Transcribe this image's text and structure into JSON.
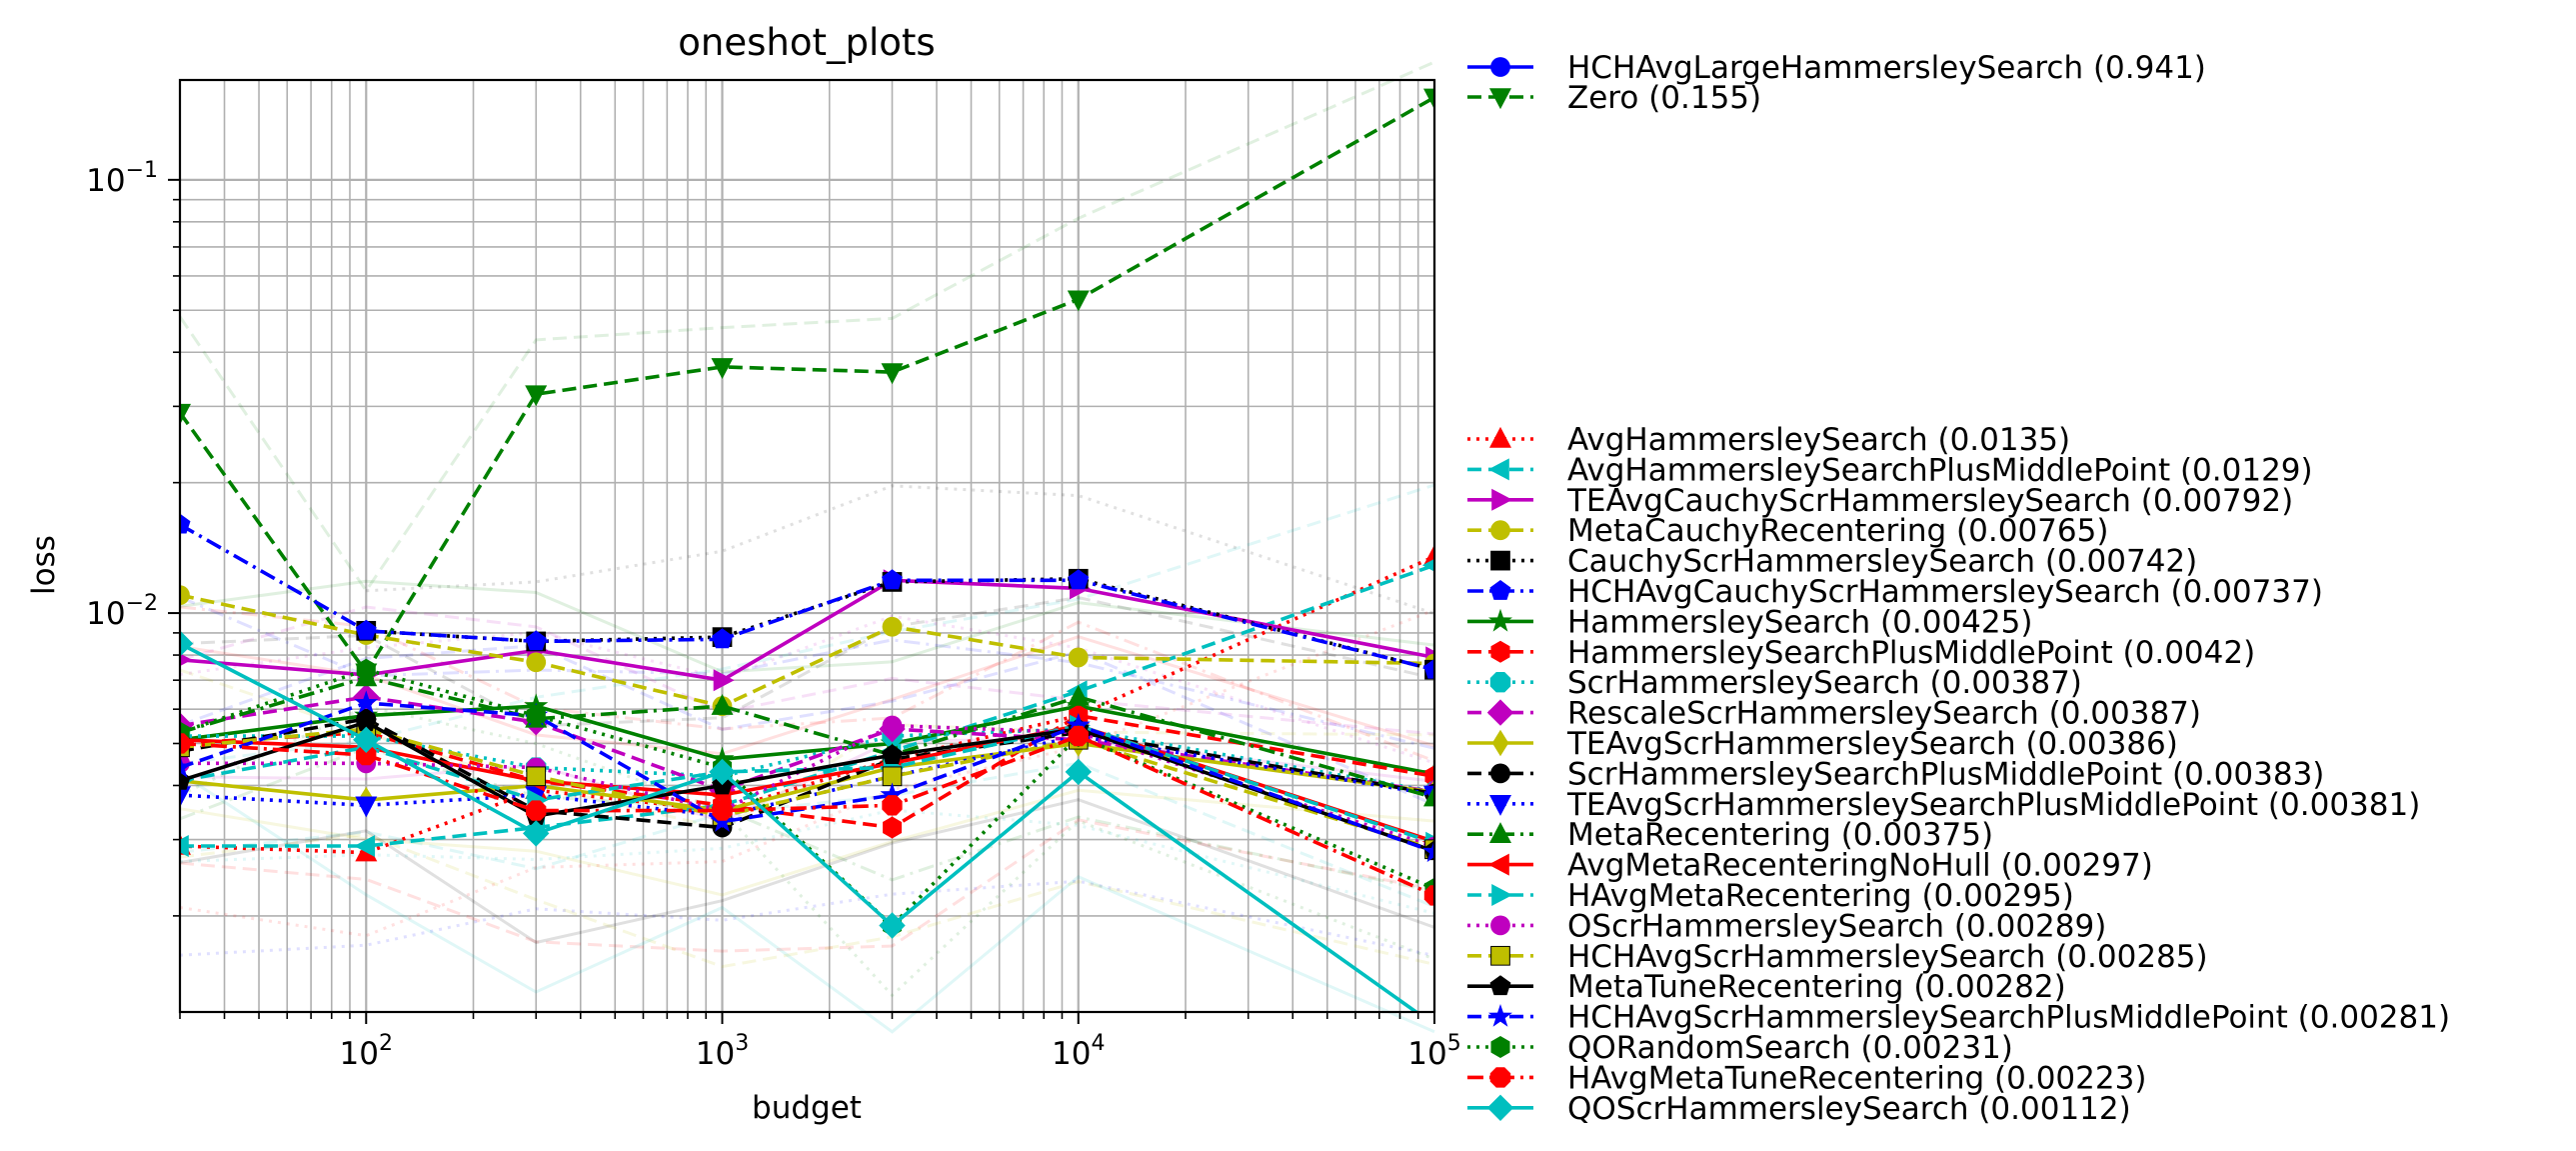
{
  "chart_data": {
    "type": "line",
    "title": "oneshot_plots",
    "xlabel": "budget",
    "ylabel": "loss",
    "xscale": "log",
    "yscale": "log",
    "xlim": [
      30,
      100000
    ],
    "ylim": [
      0.0012,
      0.17
    ],
    "grid": true,
    "legend_placement": "right of plot",
    "x_tick_labels": [
      {
        "base": "10",
        "exp": "2"
      },
      {
        "base": "10",
        "exp": "3"
      },
      {
        "base": "10",
        "exp": "4"
      },
      {
        "base": "10",
        "exp": "5"
      }
    ],
    "y_tick_labels": [
      {
        "base": "10",
        "exp": "−2"
      },
      {
        "base": "10",
        "exp": "−1"
      }
    ],
    "x": [
      30,
      100,
      300,
      1000,
      3000,
      10000,
      100000
    ],
    "series": [
      {
        "name": "HCHAvgLargeHammersleySearch (0.941)",
        "color": "#0000ff",
        "dash": "solid",
        "marker": "circle",
        "values": [
          null,
          null,
          null,
          null,
          null,
          null,
          null
        ]
      },
      {
        "name": "Zero (0.155)",
        "color": "#008000",
        "dash": "dashed",
        "marker": "tri-down",
        "values": [
          0.029,
          0.0073,
          0.032,
          0.037,
          0.036,
          0.053,
          0.155
        ]
      },
      {
        "name": "AvgHammersleySearch (0.0135)",
        "color": "#ff0000",
        "dash": "dotted",
        "marker": "tri-up",
        "values": [
          0.0029,
          0.0028,
          0.0039,
          0.0035,
          0.0046,
          0.0058,
          0.0135
        ]
      },
      {
        "name": "AvgHammersleySearchPlusMiddlePoint (0.0129)",
        "color": "#00bfbf",
        "dash": "dashed",
        "marker": "tri-left",
        "values": [
          0.0029,
          0.0029,
          0.0032,
          0.0036,
          0.0048,
          0.0066,
          0.0129
        ]
      },
      {
        "name": "TEAvgCauchyScrHammersleySearch (0.00792)",
        "color": "#bf00bf",
        "dash": "solid",
        "marker": "tri-right",
        "values": [
          0.0078,
          0.0072,
          0.0082,
          0.007,
          0.0119,
          0.0114,
          0.0079
        ]
      },
      {
        "name": "MetaCauchyRecentering (0.00765)",
        "color": "#bfbf00",
        "dash": "dashed",
        "marker": "circle",
        "values": [
          0.011,
          0.0089,
          0.0077,
          0.0061,
          0.0093,
          0.0079,
          0.00765
        ]
      },
      {
        "name": "CauchyScrHammersleySearch (0.00742)",
        "color": "#000000",
        "dash": "dotted",
        "marker": "square",
        "values": [
          null,
          0.0091,
          0.0086,
          0.0088,
          0.0118,
          0.012,
          0.0074
        ]
      },
      {
        "name": "HCHAvgCauchyScrHammersleySearch (0.00737)",
        "color": "#0000ff",
        "dash": "dashdot",
        "marker": "pentagon",
        "values": [
          0.016,
          0.0091,
          0.0086,
          0.0087,
          0.0119,
          0.0119,
          0.0074
        ]
      },
      {
        "name": "HammersleySearch (0.00425)",
        "color": "#008000",
        "dash": "solid",
        "marker": "star",
        "values": [
          0.0051,
          0.0058,
          0.0061,
          0.0046,
          0.005,
          0.0061,
          0.00425
        ]
      },
      {
        "name": "HammersleySearchPlusMiddlePoint (0.0042)",
        "color": "#ff0000",
        "dash": "dashed",
        "marker": "hexagon",
        "values": [
          0.005,
          0.0053,
          0.0041,
          0.0036,
          0.0032,
          0.0058,
          0.0042
        ]
      },
      {
        "name": "ScrHammersleySearch (0.00387)",
        "color": "#00bfbf",
        "dash": "dotted",
        "marker": "octagon",
        "values": [
          0.0052,
          0.0052,
          0.0044,
          0.0042,
          0.0052,
          0.0054,
          0.00387
        ]
      },
      {
        "name": "RescaleScrHammersleySearch (0.00387)",
        "color": "#bf00bf",
        "dash": "dashed",
        "marker": "diamond",
        "values": [
          0.0055,
          0.0064,
          0.0056,
          0.0039,
          0.0054,
          0.0051,
          0.00387
        ]
      },
      {
        "name": "TEAvgScrHammersleySearch (0.00386)",
        "color": "#bfbf00",
        "dash": "solid",
        "marker": "thin-diamond",
        "values": [
          0.0041,
          0.0037,
          0.004,
          0.0035,
          0.0044,
          0.005,
          0.00386
        ]
      },
      {
        "name": "ScrHammersleySearchPlusMiddlePoint (0.00383)",
        "color": "#000000",
        "dash": "dashed",
        "marker": "circle",
        "values": [
          0.0048,
          0.0057,
          0.0035,
          0.0032,
          0.0046,
          0.0053,
          0.00383
        ]
      },
      {
        "name": "TEAvgScrHammersleySearchPlusMiddlePoint (0.00381)",
        "color": "#0000ff",
        "dash": "dotted",
        "marker": "tri-down",
        "values": [
          0.0038,
          0.0036,
          0.0038,
          0.0034,
          0.0042,
          0.0052,
          0.00381
        ]
      },
      {
        "name": "MetaRecentering (0.00375)",
        "color": "#008000",
        "dash": "dashdot",
        "marker": "tri-up",
        "values": [
          0.0053,
          0.0071,
          0.0057,
          0.0061,
          0.0047,
          0.0064,
          0.00375
        ]
      },
      {
        "name": "AvgMetaRecenteringNoHull (0.00297)",
        "color": "#ff0000",
        "dash": "solid",
        "marker": "tri-left",
        "values": [
          0.0051,
          0.0049,
          0.0041,
          0.0038,
          0.0045,
          0.0055,
          0.00297
        ]
      },
      {
        "name": "HAvgMetaRecentering (0.00295)",
        "color": "#00bfbf",
        "dash": "dashed",
        "marker": "tri-right",
        "values": [
          0.0041,
          0.0049,
          0.0037,
          0.0043,
          0.0044,
          0.0055,
          0.00295
        ]
      },
      {
        "name": "OScrHammersleySearch (0.00289)",
        "color": "#bf00bf",
        "dash": "dotted",
        "marker": "circle",
        "values": [
          0.0045,
          0.0045,
          0.0044,
          0.0035,
          0.0055,
          0.0053,
          0.00289
        ]
      },
      {
        "name": "HCHAvgScrHammersleySearch (0.00285)",
        "color": "#bfbf00",
        "dash": "dashed",
        "marker": "square",
        "values": [
          0.0049,
          0.0054,
          0.0042,
          0.0034,
          0.0042,
          0.0051,
          0.00285
        ]
      },
      {
        "name": "MetaTuneRecentering (0.00282)",
        "color": "#000000",
        "dash": "solid",
        "marker": "pentagon",
        "values": [
          0.0041,
          0.0056,
          0.0034,
          0.004,
          0.0047,
          0.0054,
          0.00282
        ]
      },
      {
        "name": "HCHAvgScrHammersleySearchPlusMiddlePoint (0.00281)",
        "color": "#0000ff",
        "dash": "dashed",
        "marker": "star",
        "values": [
          0.0044,
          0.0062,
          0.0058,
          0.0033,
          0.0038,
          0.0055,
          0.00281
        ]
      },
      {
        "name": "QORandomSearch (0.00231)",
        "color": "#008000",
        "dash": "dotted",
        "marker": "hexagon",
        "values": [
          0.0053,
          0.0074,
          0.0058,
          0.0044,
          0.0019,
          0.0052,
          0.00231
        ]
      },
      {
        "name": "HAvgMetaTuneRecentering (0.00223)",
        "color": "#ff0000",
        "dash": "dashdot",
        "marker": "octagon",
        "values": [
          0.005,
          0.0047,
          0.0035,
          0.0035,
          0.0036,
          0.0052,
          0.00223
        ]
      },
      {
        "name": "QOScrHammersleySearch (0.00112)",
        "color": "#00bfbf",
        "dash": "solid",
        "marker": "diamond",
        "values": [
          0.0085,
          0.0051,
          0.0031,
          0.0043,
          0.0019,
          0.0043,
          0.00112
        ]
      }
    ],
    "background_series_note_free": true
  }
}
